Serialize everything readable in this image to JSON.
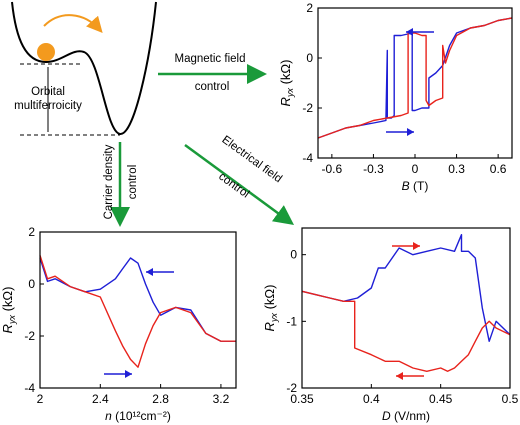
{
  "diagram": {
    "label": [
      "Orbital",
      "multiferroicity"
    ],
    "arrows": [
      {
        "label": "Magnetic field",
        "sub": "control"
      },
      {
        "label": "Carrier density",
        "sub": "control"
      },
      {
        "label": "Electrical field",
        "sub": "control"
      }
    ]
  },
  "chart_data": [
    {
      "type": "line",
      "xlabel": [
        "B",
        " (T)"
      ],
      "ylabel": [
        "R",
        "yx",
        " (kΩ)"
      ],
      "xlim": [
        -0.7,
        0.7
      ],
      "xticks": [
        -0.6,
        -0.3,
        0,
        0.3,
        0.6
      ],
      "ylim": [
        -4,
        2
      ],
      "yticks": [
        -4,
        -2,
        0,
        2
      ],
      "series": [
        {
          "color": "#1f1fd6",
          "x": [
            0.7,
            0.6,
            0.5,
            0.4,
            0.3,
            0.25,
            0.2,
            0.15,
            0.1,
            0.1,
            0.05,
            0.0,
            -0.02,
            -0.02,
            -0.1,
            -0.15,
            -0.15,
            -0.17,
            -0.2,
            -0.2,
            -0.21,
            -0.3,
            -0.4,
            -0.5,
            -0.6,
            -0.7
          ],
          "values": [
            1.6,
            1.5,
            1.3,
            1.2,
            1.0,
            0.5,
            -0.3,
            -0.6,
            -0.8,
            -2.0,
            -2.0,
            -2.1,
            -2.1,
            1.0,
            0.9,
            0.9,
            -2.3,
            -2.4,
            -2.4,
            0.3,
            -2.5,
            -2.6,
            -2.7,
            -2.8,
            -3.0,
            -3.2
          ]
        },
        {
          "color": "#e8231c",
          "x": [
            -0.7,
            -0.6,
            -0.5,
            -0.4,
            -0.3,
            -0.2,
            -0.1,
            -0.05,
            -0.05,
            0.0,
            0.05,
            0.08,
            0.08,
            0.1,
            0.15,
            0.2,
            0.2,
            0.22,
            0.25,
            0.3,
            0.4,
            0.5,
            0.6,
            0.7
          ],
          "values": [
            -3.2,
            -3.0,
            -2.8,
            -2.7,
            -2.5,
            -2.4,
            -2.3,
            -2.2,
            1.0,
            1.0,
            0.9,
            0.9,
            -1.7,
            -1.9,
            -1.7,
            -1.6,
            0.5,
            -0.2,
            0.3,
            0.9,
            1.2,
            1.3,
            1.5,
            1.6
          ]
        }
      ]
    },
    {
      "type": "line",
      "xlabel": [
        "n",
        " (10¹²cm⁻²)"
      ],
      "ylabel": [
        "R",
        "yx",
        " (kΩ)"
      ],
      "xlim": [
        2,
        3.3
      ],
      "xticks": [
        2,
        2.4,
        2.8,
        3.2
      ],
      "ylim": [
        -4,
        2
      ],
      "yticks": [
        -4,
        -2,
        0,
        2
      ],
      "series": [
        {
          "color": "#1f1fd6",
          "x": [
            2.0,
            2.05,
            2.1,
            2.2,
            2.3,
            2.4,
            2.5,
            2.55,
            2.6,
            2.65,
            2.7,
            2.75,
            2.8,
            2.9,
            3.0,
            3.1,
            3.2,
            3.3
          ],
          "values": [
            1.0,
            0.1,
            0.2,
            -0.1,
            -0.3,
            -0.2,
            0.2,
            0.6,
            1.0,
            0.8,
            0,
            -0.7,
            -1.2,
            -0.9,
            -1.0,
            -1.9,
            -2.2,
            -2.2
          ]
        },
        {
          "color": "#e8231c",
          "x": [
            2.0,
            2.05,
            2.1,
            2.2,
            2.3,
            2.4,
            2.5,
            2.55,
            2.6,
            2.65,
            2.7,
            2.75,
            2.8,
            2.9,
            3.0,
            3.1,
            3.2,
            3.3
          ],
          "values": [
            1.1,
            0.2,
            0.3,
            -0.1,
            -0.3,
            -0.5,
            -1.8,
            -2.4,
            -2.9,
            -3.2,
            -2.3,
            -1.6,
            -1.1,
            -0.9,
            -1.1,
            -1.9,
            -2.2,
            -2.2
          ]
        }
      ]
    },
    {
      "type": "line",
      "xlabel": [
        "D",
        " (V/nm)"
      ],
      "ylabel": [
        "R",
        "yx",
        " (kΩ)"
      ],
      "xlim": [
        0.35,
        0.5
      ],
      "xticks": [
        0.35,
        0.4,
        0.45,
        0.5
      ],
      "ylim": [
        -2,
        0.4
      ],
      "yticks": [
        -2,
        -1,
        0
      ],
      "series": [
        {
          "color": "#1f1fd6",
          "x": [
            0.35,
            0.36,
            0.37,
            0.38,
            0.39,
            0.4,
            0.405,
            0.41,
            0.42,
            0.43,
            0.44,
            0.45,
            0.46,
            0.465,
            0.465,
            0.47,
            0.475,
            0.48,
            0.485,
            0.49,
            0.5
          ],
          "values": [
            -0.55,
            -0.6,
            -0.65,
            -0.7,
            -0.65,
            -0.5,
            -0.2,
            -0.2,
            0.1,
            0.0,
            0.05,
            0.1,
            0.05,
            0.3,
            0.05,
            0.05,
            -0.05,
            -0.8,
            -1.3,
            -1.0,
            -1.2
          ]
        },
        {
          "color": "#e8231c",
          "x": [
            0.35,
            0.36,
            0.37,
            0.38,
            0.388,
            0.388,
            0.4,
            0.41,
            0.42,
            0.43,
            0.44,
            0.45,
            0.455,
            0.46,
            0.465,
            0.47,
            0.475,
            0.48,
            0.485,
            0.49,
            0.5
          ],
          "values": [
            -0.55,
            -0.6,
            -0.65,
            -0.7,
            -0.7,
            -1.4,
            -1.5,
            -1.6,
            -1.6,
            -1.7,
            -1.75,
            -1.7,
            -1.75,
            -1.7,
            -1.6,
            -1.5,
            -1.3,
            -1.1,
            -1.0,
            -1.1,
            -1.2
          ]
        }
      ]
    }
  ]
}
